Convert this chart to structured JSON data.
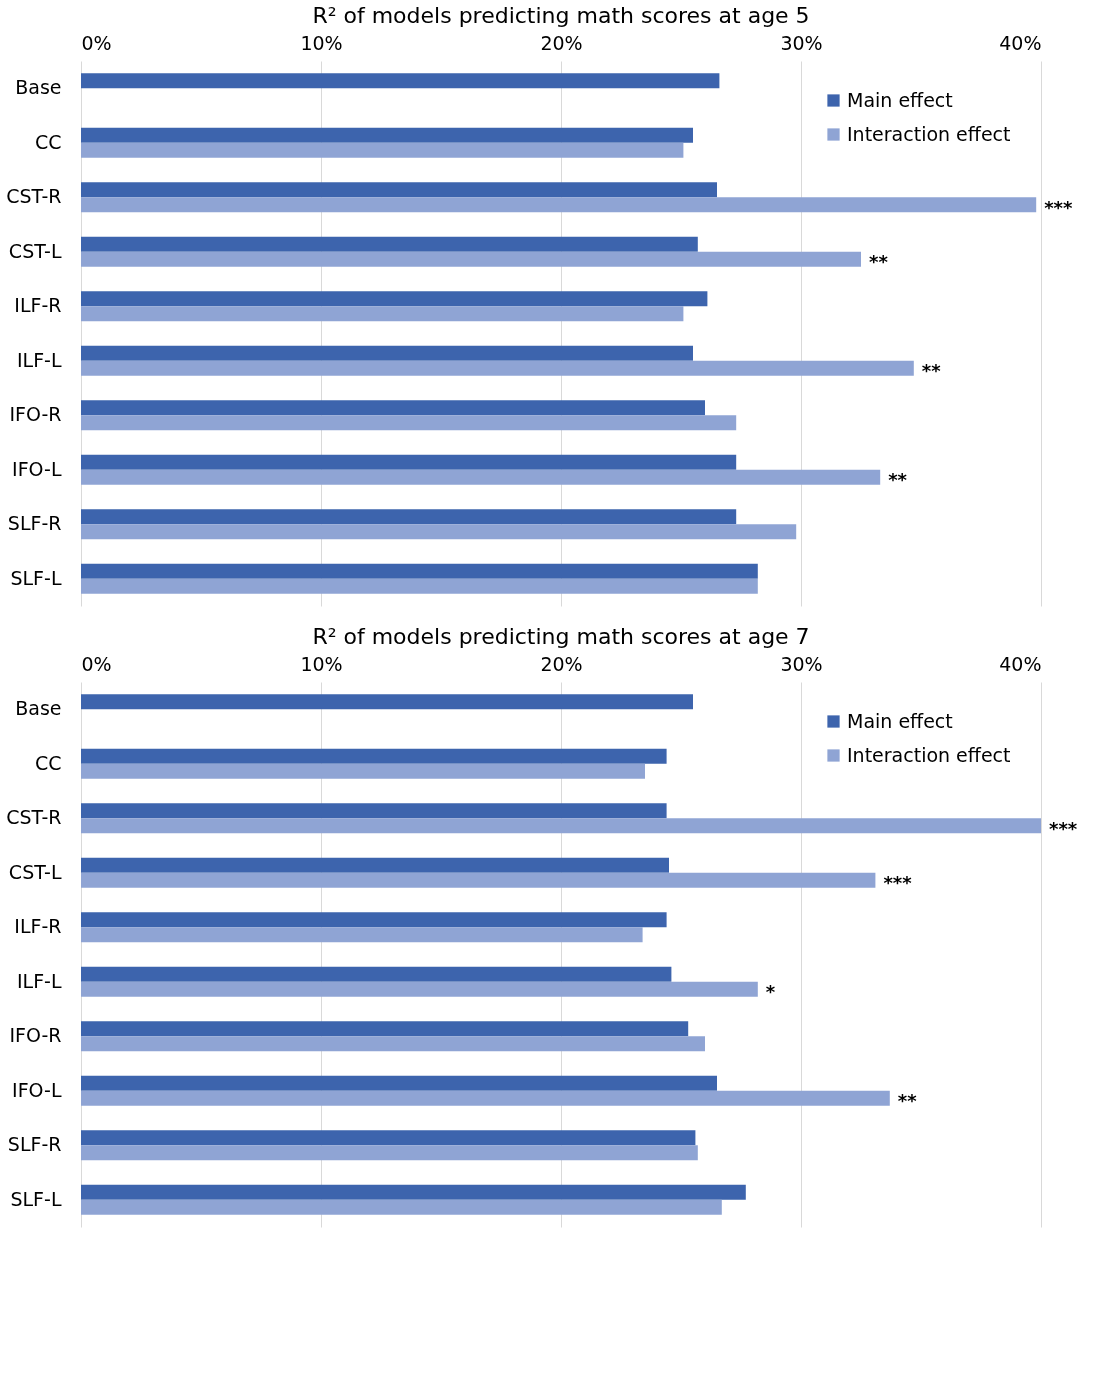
{
  "chart_data": [
    {
      "type": "bar",
      "orientation": "horizontal",
      "title": "R² of models predicting math scores at age 5",
      "categories": [
        "Base",
        "CC",
        "CST-R",
        "CST-L",
        "ILF-R",
        "ILF-L",
        "IFO-R",
        "IFO-L",
        "SLF-R",
        "SLF-L"
      ],
      "series": [
        {
          "name": "Main effect",
          "color": "#3d64ad",
          "values": [
            26.6,
            25.5,
            26.5,
            25.7,
            26.1,
            25.5,
            26.0,
            27.3,
            27.3,
            28.2
          ]
        },
        {
          "name": "Interaction effect",
          "color": "#8fa4d4",
          "values": [
            null,
            25.1,
            39.8,
            32.5,
            25.1,
            34.7,
            27.3,
            33.3,
            29.8,
            28.2
          ]
        }
      ],
      "xlim": [
        0,
        40
      ],
      "xticks": [
        {
          "value": 0,
          "label": "0%"
        },
        {
          "value": 10,
          "label": "10%"
        },
        {
          "value": 20,
          "label": "20%"
        },
        {
          "value": 30,
          "label": "30%"
        },
        {
          "value": 40,
          "label": "40%"
        }
      ],
      "grid": "x",
      "legend": "top right",
      "annotations": [
        {
          "text": "***",
          "x": 39.8,
          "y": "CST-R"
        },
        {
          "text": "**",
          "x": 32.5,
          "y": "CST-L"
        },
        {
          "text": "**",
          "x": 34.7,
          "y": "ILF-L"
        },
        {
          "text": "**",
          "x": 33.3,
          "y": "IFO-L"
        }
      ]
    },
    {
      "type": "bar",
      "orientation": "horizontal",
      "title": "R² of models predicting math scores at age 7",
      "categories": [
        "Base",
        "CC",
        "CST-R",
        "CST-L",
        "ILF-R",
        "ILF-L",
        "IFO-R",
        "IFO-L",
        "SLF-R",
        "SLF-L"
      ],
      "series": [
        {
          "name": "Main effect",
          "color": "#3d64ad",
          "values": [
            25.5,
            24.4,
            24.4,
            24.5,
            24.4,
            24.6,
            25.3,
            26.5,
            25.6,
            27.7
          ]
        },
        {
          "name": "Interaction effect",
          "color": "#8fa4d4",
          "values": [
            null,
            23.5,
            40.0,
            33.1,
            23.4,
            28.2,
            26.0,
            33.7,
            25.7,
            26.7
          ]
        }
      ],
      "xlim": [
        0,
        40
      ],
      "xticks": [
        {
          "value": 0,
          "label": "0%"
        },
        {
          "value": 10,
          "label": "10%"
        },
        {
          "value": 20,
          "label": "20%"
        },
        {
          "value": 30,
          "label": "30%"
        },
        {
          "value": 40,
          "label": "40%"
        }
      ],
      "grid": "x",
      "legend": "top right",
      "annotations": [
        {
          "text": "***",
          "x": 40.0,
          "y": "CST-R"
        },
        {
          "text": "***",
          "x": 33.1,
          "y": "CST-L"
        },
        {
          "text": "*",
          "x": 28.2,
          "y": "ILF-L"
        },
        {
          "text": "**",
          "x": 33.7,
          "y": "IFO-L"
        }
      ]
    }
  ]
}
